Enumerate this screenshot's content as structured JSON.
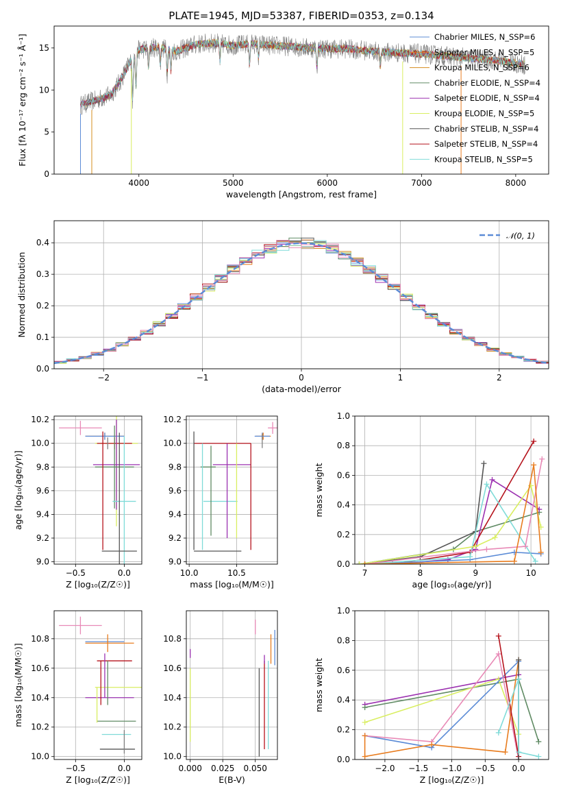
{
  "figure_title": "PLATE=1945, MJD=53387, FIBERID=0353, z=0.134",
  "colors": {
    "c1": "#5b8bd6",
    "c2": "#e87c1e",
    "c3": "#d48c1e",
    "c4": "#5f8a63",
    "c5": "#9b30b0",
    "c6": "#d9ee60",
    "c7": "#555555",
    "c8": "#b5121b",
    "c9": "#7fdbd8",
    "pink": "#e889b6",
    "grey": "#7f7f7f",
    "grid": "#b0b0b0",
    "normal": "#5b8bd6"
  },
  "chart_data": [
    {
      "id": "spectrum",
      "type": "line",
      "title": "PLATE=1945, MJD=53387, FIBERID=0353, z=0.134",
      "xlabel": "wavelength [Angstrom, rest frame]",
      "ylabel": "Flux [fλ 10⁻¹⁷ erg cm⁻² s⁻¹ Å⁻¹]",
      "xlim": [
        3100,
        8350
      ],
      "ylim": [
        0,
        17.6
      ],
      "xticks": [
        4000,
        5000,
        6000,
        7000,
        8000
      ],
      "yticks": [
        0,
        5,
        10,
        15
      ],
      "grid": false,
      "legend_position": "right",
      "legend": [
        {
          "name": "Chabrier MILES, N_SSP=6",
          "color": "#5b8bd6"
        },
        {
          "name": "Salpeter MILES, N_SSP=5",
          "color": "#e87c1e"
        },
        {
          "name": "Kroupa MILES, N_SSP=6",
          "color": "#d48c1e"
        },
        {
          "name": "Chabrier ELODIE, N_SSP=4",
          "color": "#5f8a63"
        },
        {
          "name": "Salpeter ELODIE, N_SSP=4",
          "color": "#9b30b0"
        },
        {
          "name": "Kroupa ELODIE, N_SSP=5",
          "color": "#d9ee60"
        },
        {
          "name": "Chabrier STELIB, N_SSP=4",
          "color": "#555555"
        },
        {
          "name": "Salpeter STELIB, N_SSP=4",
          "color": "#b5121b"
        },
        {
          "name": "Kroupa STELIB, N_SSP=5",
          "color": "#7fdbd8"
        }
      ],
      "continuum": {
        "x": [
          3380,
          3550,
          3700,
          3800,
          3900,
          4000,
          4200,
          4400,
          4600,
          4800,
          5000,
          5200,
          5400,
          5600,
          5800,
          6000,
          6200,
          6400,
          6600,
          6800,
          7000,
          7200,
          7400,
          7600,
          7800,
          8000,
          8100
        ],
        "y": [
          8.2,
          8.8,
          9.4,
          11.0,
          13.2,
          14.8,
          15.1,
          14.6,
          15.4,
          15.6,
          15.3,
          15.5,
          15.3,
          15.2,
          15.0,
          14.9,
          14.9,
          14.7,
          14.5,
          14.4,
          14.3,
          14.1,
          13.9,
          13.7,
          13.5,
          13.2,
          13.0
        ]
      },
      "model_cutoffs": [
        {
          "color": "#5b8bd6",
          "x": 3380
        },
        {
          "color": "#d48c1e",
          "x": 3500
        },
        {
          "color": "#d9ee60",
          "x": 3920
        },
        {
          "color": "#d9ee60",
          "x": 6800
        },
        {
          "color": "#e87c1e",
          "x": 7420
        }
      ]
    },
    {
      "id": "residuals",
      "type": "step-histogram",
      "xlabel": "(data-model)/error",
      "ylabel": "Normed distribution",
      "xlim": [
        -2.5,
        2.5
      ],
      "ylim": [
        0,
        0.47
      ],
      "xticks": [
        -2,
        -1,
        0,
        1,
        2
      ],
      "yticks": [
        0.0,
        0.1,
        0.2,
        0.3,
        0.4
      ],
      "grid": true,
      "legend_position": "top-right",
      "legend": [
        {
          "name": "𝒩(0, 1)",
          "color": "#5b8bd6",
          "style": "dashed"
        }
      ],
      "bin_width": 0.125,
      "bin_start": -2.5
    },
    {
      "id": "age-vs-Z",
      "type": "errorbar",
      "xlabel": "Z [log₁₀(Z/Z☉)]",
      "ylabel": "age  [log₁₀(age/yr)]",
      "xlim": [
        -0.72,
        0.18
      ],
      "ylim": [
        8.98,
        10.23
      ],
      "xticks": [
        -0.5,
        0.0
      ],
      "yticks": [
        9.0,
        9.2,
        9.4,
        9.6,
        9.8,
        10.0,
        10.2
      ],
      "grid": true,
      "points": [
        {
          "color": "#e889b6",
          "x": -0.45,
          "xerr": 0.22,
          "y": 10.13,
          "yerr": 0.06
        },
        {
          "color": "#e87c1e",
          "x": -0.2,
          "xerr": 0.2,
          "y": 10.06,
          "yerr": 0.03
        },
        {
          "color": "#5b8bd6",
          "x": -0.2,
          "xerr": 0.2,
          "y": 10.06,
          "yerr": 0.03
        },
        {
          "color": "#d9ee60",
          "x": -0.08,
          "xerr": 0.22,
          "y": 10.0,
          "yerr": 0.7
        },
        {
          "color": "#b5121b",
          "x": -0.1,
          "xerr": 0.18,
          "y": 10.0,
          "yerr": 0.05
        },
        {
          "color": "#9b30b0",
          "x": -0.08,
          "xerr": 0.24,
          "y": 9.82,
          "yerr": 0.38
        },
        {
          "color": "#5f8a63",
          "x": -0.1,
          "xerr": 0.2,
          "y": 9.8,
          "yerr": 0.35
        },
        {
          "color": "#7fdbd8",
          "x": 0.0,
          "xerr": 0.12,
          "y": 9.51,
          "yerr": 0.55
        },
        {
          "color": "#555555",
          "x": -0.05,
          "xerr": 0.18,
          "y": 9.09,
          "yerr": 1.0
        },
        {
          "color": "#b5121b",
          "x": -0.22,
          "xerr": 0.0,
          "y": 9.6,
          "yerr": 0.5
        },
        {
          "color": "#7f7f7f",
          "x": -0.17,
          "xerr": 0.0,
          "y": 10.0,
          "yerr": 0.05
        }
      ]
    },
    {
      "id": "age-vs-mass",
      "type": "errorbar",
      "xlabel": "mass [log₁₀(M/M☉)]",
      "ylabel": "",
      "xlim": [
        9.97,
        10.93
      ],
      "ylim": [
        8.98,
        10.23
      ],
      "xticks": [
        10.0,
        10.5
      ],
      "yticks": [
        9.0,
        9.2,
        9.4,
        9.6,
        9.8,
        10.0,
        10.2
      ],
      "grid": true,
      "points": [
        {
          "color": "#e889b6",
          "x": 10.88,
          "xerr": 0.05,
          "y": 10.13,
          "yerr": 0.05
        },
        {
          "color": "#e87c1e",
          "x": 10.78,
          "xerr": 0.08,
          "y": 10.06,
          "yerr": 0.03
        },
        {
          "color": "#5b8bd6",
          "x": 10.77,
          "xerr": 0.08,
          "y": 10.06,
          "yerr": 0.03
        },
        {
          "color": "#b5121b",
          "x": 10.35,
          "xerr": 0.3,
          "y": 10.0,
          "yerr": 0.0
        },
        {
          "color": "#555555",
          "x": 10.05,
          "xerr": 0.0,
          "y": 9.6,
          "yerr": 0.5
        },
        {
          "color": "#5f8a63",
          "x": 10.2,
          "xerr": 0.08,
          "y": 9.8,
          "yerr": 0.0
        },
        {
          "color": "#9b30b0",
          "x": 10.45,
          "xerr": 0.2,
          "y": 9.82,
          "yerr": 0.0
        },
        {
          "color": "#7fdbd8",
          "x": 10.33,
          "xerr": 0.18,
          "y": 9.51,
          "yerr": 0.0
        },
        {
          "color": "#555555",
          "x": 10.3,
          "xerr": 0.25,
          "y": 9.09,
          "yerr": 0.0
        },
        {
          "color": "#7fdbd8",
          "x": 10.14,
          "xerr": 0.0,
          "y": 9.55,
          "yerr": 0.45
        },
        {
          "color": "#5f8a63",
          "x": 10.23,
          "xerr": 0.0,
          "y": 9.6,
          "yerr": 0.38
        },
        {
          "color": "#9b30b0",
          "x": 10.4,
          "xerr": 0.0,
          "y": 9.6,
          "yerr": 0.4
        },
        {
          "color": "#d9ee60",
          "x": 10.5,
          "xerr": 0.0,
          "y": 9.6,
          "yerr": 0.4
        },
        {
          "color": "#b5121b",
          "x": 10.65,
          "xerr": 0.0,
          "y": 9.55,
          "yerr": 0.45
        },
        {
          "color": "#7f7f7f",
          "x": 10.77,
          "xerr": 0.0,
          "y": 10.02,
          "yerr": 0.06
        }
      ]
    },
    {
      "id": "weight-vs-age",
      "type": "line",
      "xlabel": "age  [log₁₀(age/yr)]",
      "ylabel": "mass weight",
      "xlim": [
        6.82,
        10.32
      ],
      "ylim": [
        0,
        1.0
      ],
      "xticks": [
        7,
        8,
        9,
        10
      ],
      "yticks": [
        0.0,
        0.2,
        0.4,
        0.6,
        0.8,
        1.0
      ],
      "grid": true,
      "series": [
        {
          "color": "#5f8a63",
          "x": [
            6.9,
            8.6,
            9.0,
            10.15
          ],
          "y": [
            0.0,
            0.1,
            0.22,
            0.35
          ]
        },
        {
          "color": "#555555",
          "x": [
            6.9,
            8.0,
            9.0,
            9.15
          ],
          "y": [
            0.0,
            0.05,
            0.22,
            0.68
          ]
        },
        {
          "color": "#9b30b0",
          "x": [
            7.5,
            8.5,
            9.0,
            9.3,
            10.15
          ],
          "y": [
            0.0,
            0.03,
            0.1,
            0.57,
            0.37
          ]
        },
        {
          "color": "#b5121b",
          "x": [
            7.5,
            8.9,
            10.05
          ],
          "y": [
            0.0,
            0.08,
            0.83
          ]
        },
        {
          "color": "#5b8bd6",
          "x": [
            7.0,
            8.9,
            9.7,
            10.18
          ],
          "y": [
            0.0,
            0.03,
            0.08,
            0.07
          ]
        },
        {
          "color": "#7fdbd8",
          "x": [
            7.0,
            8.9,
            9.2,
            10.08
          ],
          "y": [
            0.0,
            0.05,
            0.54,
            0.02
          ]
        },
        {
          "color": "#d9ee60",
          "x": [
            6.9,
            9.0,
            9.35,
            10.0,
            10.18
          ],
          "y": [
            0.0,
            0.12,
            0.18,
            0.53,
            0.25
          ]
        },
        {
          "color": "#e889b6",
          "x": [
            7.0,
            9.2,
            9.9,
            10.2
          ],
          "y": [
            0.0,
            0.1,
            0.12,
            0.71
          ]
        },
        {
          "color": "#e87c1e",
          "x": [
            7.0,
            9.7,
            10.05,
            10.18
          ],
          "y": [
            0.0,
            0.02,
            0.67,
            0.08
          ]
        }
      ]
    },
    {
      "id": "mass-vs-Z",
      "type": "errorbar",
      "xlabel": "Z [log₁₀(Z/Z☉)]",
      "ylabel": "mass [log₁₀(M/M☉)]",
      "xlim": [
        -0.72,
        0.18
      ],
      "ylim": [
        9.98,
        10.99
      ],
      "xticks": [
        -0.5,
        0.0
      ],
      "yticks": [
        10.0,
        10.2,
        10.4,
        10.6,
        10.8
      ],
      "grid": true,
      "points": [
        {
          "color": "#e889b6",
          "x": -0.45,
          "xerr": 0.22,
          "y": 10.89,
          "yerr": 0.06
        },
        {
          "color": "#5b8bd6",
          "x": -0.2,
          "xerr": 0.2,
          "y": 10.78,
          "yerr": 0.0
        },
        {
          "color": "#e87c1e",
          "x": -0.15,
          "xerr": 0.25,
          "y": 10.77,
          "yerr": 0.0
        },
        {
          "color": "#b5121b",
          "x": -0.1,
          "xerr": 0.18,
          "y": 10.65,
          "yerr": 0.0
        },
        {
          "color": "#d9ee60",
          "x": -0.06,
          "xerr": 0.24,
          "y": 10.47,
          "yerr": 0.0
        },
        {
          "color": "#9b30b0",
          "x": -0.15,
          "xerr": 0.25,
          "y": 10.4,
          "yerr": 0.0
        },
        {
          "color": "#5f8a63",
          "x": -0.08,
          "xerr": 0.2,
          "y": 10.24,
          "yerr": 0.0
        },
        {
          "color": "#7fdbd8",
          "x": -0.08,
          "xerr": 0.15,
          "y": 10.15,
          "yerr": 0.0
        },
        {
          "color": "#555555",
          "x": -0.07,
          "xerr": 0.18,
          "y": 10.05,
          "yerr": 0.0
        },
        {
          "color": "#d9ee60",
          "x": -0.28,
          "xerr": 0.0,
          "y": 10.35,
          "yerr": 0.12
        },
        {
          "color": "#b5121b",
          "x": -0.24,
          "xerr": 0.0,
          "y": 10.5,
          "yerr": 0.15
        },
        {
          "color": "#9b30b0",
          "x": -0.2,
          "xerr": 0.0,
          "y": 10.55,
          "yerr": 0.15
        },
        {
          "color": "#5f8a63",
          "x": -0.17,
          "xerr": 0.0,
          "y": 10.5,
          "yerr": 0.15
        },
        {
          "color": "#e87c1e",
          "x": -0.17,
          "xerr": 0.0,
          "y": 10.77,
          "yerr": 0.06
        },
        {
          "color": "#7f7f7f",
          "x": 0.0,
          "xerr": 0.0,
          "y": 10.1,
          "yerr": 0.08
        }
      ]
    },
    {
      "id": "mass-vs-EBV",
      "type": "errorbar",
      "xlabel": "E(B-V)",
      "ylabel": "",
      "xlim": [
        -0.003,
        0.067
      ],
      "ylim": [
        9.98,
        10.99
      ],
      "xticks": [
        0.0,
        0.025,
        0.05
      ],
      "yticks": [
        10.0,
        10.2,
        10.4,
        10.6,
        10.8
      ],
      "grid": true,
      "points": [
        {
          "color": "#9b30b0",
          "x": 0.0,
          "y": 10.7,
          "yerr": 0.03
        },
        {
          "color": "#d9ee60",
          "x": 0.0,
          "y": 10.35,
          "yerr": 0.25
        },
        {
          "color": "#e889b6",
          "x": 0.05,
          "y": 10.88,
          "yerr": 0.05
        },
        {
          "color": "#555555",
          "x": 0.053,
          "y": 10.3,
          "yerr": 0.3
        },
        {
          "color": "#b5121b",
          "x": 0.057,
          "y": 10.35,
          "yerr": 0.3
        },
        {
          "color": "#7fdbd8",
          "x": 0.06,
          "y": 10.35,
          "yerr": 0.3
        },
        {
          "color": "#e87c1e",
          "x": 0.062,
          "y": 10.73,
          "yerr": 0.1
        },
        {
          "color": "#5b8bd6",
          "x": 0.065,
          "y": 10.74,
          "yerr": 0.12
        },
        {
          "color": "#9b30b0",
          "x": 0.057,
          "y": 10.66,
          "yerr": 0.03
        }
      ]
    },
    {
      "id": "weight-vs-Z",
      "type": "line",
      "xlabel": "Z [log₁₀(Z/Z☉)]",
      "ylabel": "mass weight",
      "xlim": [
        -2.45,
        0.45
      ],
      "ylim": [
        0,
        1.0
      ],
      "xticks": [
        -2.0,
        -1.5,
        -1.0,
        -0.5,
        0.0
      ],
      "yticks": [
        0.0,
        0.2,
        0.4,
        0.6,
        0.8,
        1.0
      ],
      "grid": true,
      "series": [
        {
          "color": "#9b30b0",
          "x": [
            -2.3,
            0.0
          ],
          "y": [
            0.37,
            0.57
          ]
        },
        {
          "color": "#5f8a63",
          "x": [
            -2.3,
            0.0,
            0.3
          ],
          "y": [
            0.35,
            0.54,
            0.12
          ]
        },
        {
          "color": "#d9ee60",
          "x": [
            -2.3,
            -0.3,
            0.0
          ],
          "y": [
            0.25,
            0.54,
            0.17
          ]
        },
        {
          "color": "#5b8bd6",
          "x": [
            -2.3,
            -1.3,
            0.0
          ],
          "y": [
            0.16,
            0.08,
            0.66
          ]
        },
        {
          "color": "#e889b6",
          "x": [
            -2.3,
            -1.3,
            -0.3,
            0.0
          ],
          "y": [
            0.16,
            0.12,
            0.71,
            0.0
          ]
        },
        {
          "color": "#e87c1e",
          "x": [
            -2.3,
            -2.3,
            -1.3,
            -0.2,
            0.0
          ],
          "y": [
            0.16,
            0.02,
            0.1,
            0.05,
            0.67
          ]
        },
        {
          "color": "#b5121b",
          "x": [
            -0.3,
            0.0
          ],
          "y": [
            0.83,
            0.02
          ]
        },
        {
          "color": "#555555",
          "x": [
            0.0,
            0.0
          ],
          "y": [
            0.67,
            0.0
          ]
        },
        {
          "color": "#7fdbd8",
          "x": [
            -0.3,
            0.0,
            0.0,
            0.3
          ],
          "y": [
            0.18,
            0.54,
            0.05,
            0.02
          ]
        }
      ]
    }
  ]
}
